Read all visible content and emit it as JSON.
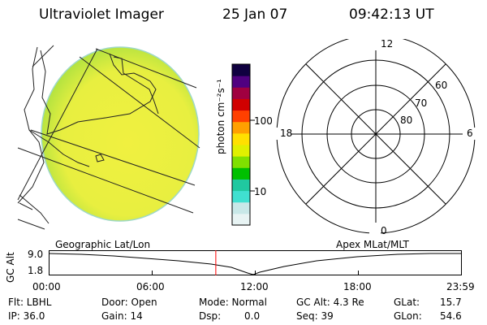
{
  "header": {
    "title": "Ultraviolet Imager",
    "date": "25 Jan 07",
    "time": "09:42:13 UT"
  },
  "colorbar": {
    "unit_label": "photon cm⁻²s⁻¹",
    "tick_100": "100",
    "tick_10": "10",
    "colors": [
      "#e8f4f4",
      "#c8e8e8",
      "#40e0d0",
      "#20c8a0",
      "#00c000",
      "#80e000",
      "#e0f000",
      "#ffe000",
      "#ffa000",
      "#ff4000",
      "#d00000",
      "#a00040",
      "#500080",
      "#100040"
    ]
  },
  "polar_grid": {
    "lat_labels": [
      "80",
      "70",
      "60"
    ],
    "mlt_labels": {
      "top": "12",
      "left": "18",
      "right": "6",
      "bottom": "0"
    }
  },
  "timeline": {
    "left_title": "Geographic Lat/Lon",
    "right_title": "Apex MLat/MLT",
    "ylabel": "GC Alt",
    "ytick_top": "9.0",
    "ytick_bottom": "1.8",
    "xticks": [
      "00:00",
      "06:00",
      "12:00",
      "18:00",
      "23:59"
    ],
    "current_time_fraction": 0.4043,
    "marker_color": "#ff0000"
  },
  "info": {
    "flt": "Flt: LBHL",
    "ip": "IP: 36.0",
    "door": "Door: Open",
    "gain": "Gain: 14",
    "mode": "Mode: Normal",
    "dsp_label": "Dsp:",
    "dsp_value": "0.0",
    "gc_alt": "GC Alt: 4.3 Re",
    "seq": "Seq: 39",
    "glat_label": "GLat:",
    "glat_value": "15.7",
    "glon_label": "GLon:",
    "glon_value": "54.6"
  }
}
